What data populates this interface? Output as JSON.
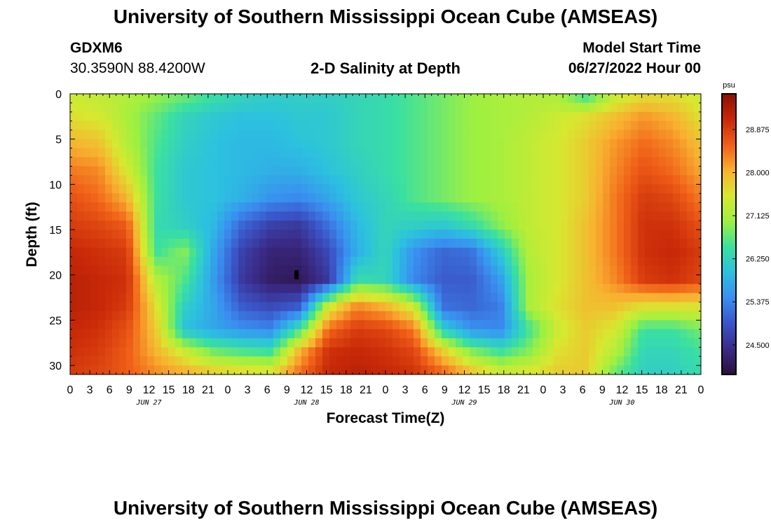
{
  "page_title": "University of Southern Mississippi Ocean Cube (AMSEAS)",
  "station_id": "GDXM6",
  "coords": "30.3590N  88.4200W",
  "plot_title": "2-D Salinity at Depth",
  "model_start_label": "Model Start Time",
  "model_start_value": "06/27/2022 Hour 00",
  "bottom_title": "University of Southern Mississippi Ocean Cube (AMSEAS)",
  "chart_data": {
    "type": "heatmap",
    "title": "2-D Salinity at Depth",
    "xlabel": "Forecast Time(Z)",
    "ylabel": "Depth (ft)",
    "x_tick_labels": [
      "0",
      "3",
      "6",
      "9",
      "12",
      "15",
      "18",
      "21",
      "0",
      "3",
      "6",
      "9",
      "12",
      "15",
      "18",
      "21",
      "0",
      "3",
      "6",
      "9",
      "12",
      "15",
      "18",
      "21",
      "0",
      "3",
      "6",
      "9",
      "12",
      "15",
      "18",
      "21",
      "0"
    ],
    "day_labels": [
      "JUN 27",
      "JUN 28",
      "JUN 29",
      "JUN 30"
    ],
    "y_ticks": [
      0,
      5,
      10,
      15,
      20,
      25,
      30
    ],
    "ylim": [
      0,
      31
    ],
    "xlim_hours": [
      0,
      96
    ],
    "colorbar": {
      "unit": "psu",
      "ticks": [
        "28.875",
        "28.000",
        "27.125",
        "26.250",
        "25.375",
        "24.500"
      ],
      "min": 23.9,
      "max": 29.6
    },
    "colors": [
      "#2b0f3a",
      "#3a2a86",
      "#3a55c8",
      "#3a8ef0",
      "#2cc0e0",
      "#3ae0a0",
      "#9ef040",
      "#d8e830",
      "#f8b030",
      "#f06018",
      "#c82808",
      "#8a1002"
    ],
    "grid": [
      [
        27.4,
        27.3,
        27.2,
        27.0,
        26.8,
        26.5,
        26.3,
        26.2,
        26.2,
        26.2,
        26.3,
        26.4,
        26.6,
        26.8,
        27.0,
        27.1,
        27.2,
        27.1,
        26.4,
        27.3,
        27.6,
        27.6,
        27.4
      ],
      [
        27.6,
        27.5,
        27.1,
        26.7,
        26.3,
        26.1,
        26.0,
        26.0,
        26.1,
        26.1,
        26.3,
        26.4,
        26.6,
        26.8,
        27.0,
        27.1,
        27.2,
        27.4,
        27.6,
        27.9,
        28.2,
        28.0,
        27.6
      ],
      [
        28.0,
        27.9,
        27.2,
        26.6,
        26.2,
        26.0,
        25.9,
        25.9,
        26.0,
        26.1,
        26.3,
        26.4,
        26.6,
        26.8,
        27.0,
        27.1,
        27.3,
        27.5,
        27.8,
        28.2,
        28.5,
        28.3,
        27.9
      ],
      [
        28.4,
        28.3,
        27.5,
        26.5,
        26.1,
        26.0,
        25.9,
        25.8,
        25.8,
        26.0,
        26.2,
        26.4,
        26.6,
        26.8,
        27.0,
        27.1,
        27.3,
        27.5,
        27.8,
        28.3,
        28.7,
        28.5,
        28.1
      ],
      [
        28.7,
        28.5,
        28.0,
        26.5,
        26.1,
        26.0,
        25.8,
        25.5,
        25.4,
        25.7,
        26.1,
        26.3,
        26.6,
        26.8,
        27.0,
        27.1,
        27.3,
        27.5,
        27.8,
        28.4,
        28.9,
        28.8,
        28.4
      ],
      [
        28.9,
        28.8,
        28.6,
        26.4,
        26.2,
        25.9,
        25.1,
        24.7,
        24.6,
        25.2,
        25.9,
        26.3,
        26.2,
        26.1,
        26.4,
        26.9,
        27.3,
        27.5,
        27.9,
        28.4,
        29.0,
        29.0,
        28.7
      ],
      [
        29.1,
        29.0,
        28.9,
        26.5,
        26.9,
        25.7,
        24.7,
        24.3,
        24.3,
        24.8,
        25.8,
        26.3,
        25.5,
        25.1,
        25.2,
        26.1,
        27.2,
        27.5,
        27.9,
        28.4,
        29.0,
        29.1,
        28.9
      ],
      [
        29.2,
        29.1,
        29.0,
        27.2,
        26.6,
        25.6,
        24.6,
        24.2,
        24.1,
        24.6,
        26.4,
        26.3,
        25.4,
        25.0,
        25.0,
        25.6,
        27.1,
        27.5,
        27.9,
        28.3,
        28.9,
        29.0,
        28.8
      ],
      [
        29.2,
        29.1,
        28.9,
        27.6,
        26.2,
        25.7,
        25.0,
        24.8,
        25.0,
        27.4,
        28.3,
        28.0,
        27.4,
        25.2,
        25.1,
        25.3,
        27.1,
        27.6,
        27.9,
        27.9,
        27.6,
        27.6,
        27.6
      ],
      [
        29.1,
        29.0,
        28.7,
        27.8,
        26.0,
        25.7,
        25.5,
        25.4,
        26.5,
        28.5,
        28.9,
        28.8,
        28.4,
        26.2,
        25.5,
        25.4,
        26.5,
        27.4,
        27.8,
        27.5,
        26.5,
        26.5,
        26.8
      ],
      [
        29.0,
        28.9,
        28.6,
        28.0,
        27.4,
        26.8,
        26.6,
        26.5,
        28.0,
        29.0,
        29.1,
        29.0,
        28.8,
        27.8,
        26.9,
        26.5,
        26.9,
        27.6,
        27.8,
        27.2,
        26.3,
        26.3,
        26.5
      ],
      [
        28.9,
        28.8,
        28.6,
        28.3,
        28.1,
        27.9,
        27.8,
        27.7,
        28.5,
        29.1,
        29.2,
        29.1,
        29.0,
        28.6,
        28.0,
        27.5,
        27.6,
        27.8,
        27.8,
        26.7,
        26.2,
        26.2,
        26.4
      ]
    ],
    "depth_rows": [
      0,
      2.5,
      5.5,
      8.5,
      11.5,
      14.5,
      17.5,
      20.5,
      23.5,
      26,
      28.5,
      31
    ]
  }
}
